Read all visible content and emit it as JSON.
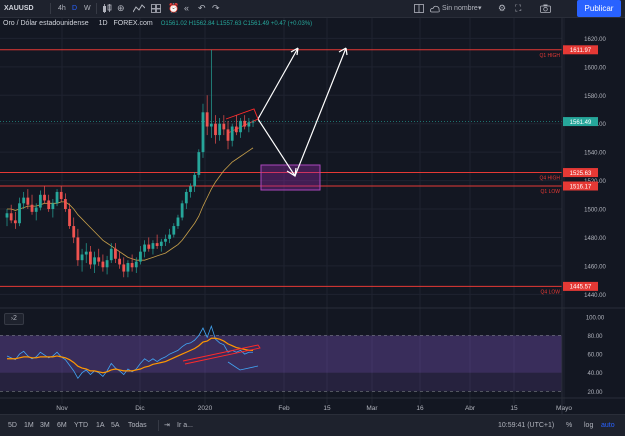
{
  "toolbar": {
    "symbol": "XAUUSD",
    "intervals": [
      "4h",
      "D",
      "W"
    ],
    "template_name": "Sin nombre",
    "publish_label": "Publicar"
  },
  "legend": {
    "title": "Oro / Dólar estadounidense",
    "interval": "1D",
    "exchange": "FOREX.com",
    "ohlc": "O1561.02  H1562.84  L1557.63  C1561.49  +0.47 (+0.03%)"
  },
  "price_axis": {
    "ticks": [
      "1620.00",
      "1600.00",
      "1580.00",
      "1560.00",
      "1540.00",
      "1520.00",
      "1500.00",
      "1480.00",
      "1460.00",
      "1440.00"
    ],
    "badges": [
      {
        "label": "1611.97",
        "color": "#e53935"
      },
      {
        "label": "1561.49",
        "color": "#26a69a"
      },
      {
        "label": "1525.63",
        "color": "#e53935"
      },
      {
        "label": "1516.17",
        "color": "#e53935"
      },
      {
        "label": "1445.57",
        "color": "#e53935"
      }
    ]
  },
  "levels": [
    {
      "label": "Q1 HIGH",
      "value": 1611.97
    },
    {
      "label": "Q4 HIGH",
      "value": 1525.63
    },
    {
      "label": "Q1 LOW",
      "value": 1516.17
    },
    {
      "label": "Q4 LOW",
      "value": 1445.57
    }
  ],
  "rsi_panel": {
    "pane_label": "2",
    "ticks": [
      "100.00",
      "80.00",
      "60.00",
      "40.00",
      "20.00"
    ]
  },
  "time_axis": [
    "Nov",
    "Dic",
    "2020",
    "Feb",
    "15",
    "Mar",
    "16",
    "Abr",
    "15",
    "Mayo"
  ],
  "bottom": {
    "ranges": [
      "5D",
      "1M",
      "3M",
      "6M",
      "YTD",
      "1A",
      "5A",
      "Todas"
    ],
    "goto": "Ir a...",
    "clock": "10:59:41 (UTC+1)",
    "percent": "%",
    "log": "log",
    "auto": "auto"
  },
  "colors": {
    "up": "#26a69a",
    "down": "#ef5350",
    "level_line": "#e53935",
    "ma": "#c8a04a",
    "rsi_orange": "#ff9800",
    "rsi_blue": "#42a5f5",
    "accent": "#2962ff"
  },
  "chart_data": {
    "type": "candlestick",
    "interval": "1D",
    "y_range": [
      1436,
      1628
    ],
    "candles": [
      [
        1494,
        1500,
        1488,
        1497
      ],
      [
        1497,
        1503,
        1490,
        1492
      ],
      [
        1492,
        1498,
        1486,
        1490
      ],
      [
        1490,
        1508,
        1488,
        1504
      ],
      [
        1504,
        1512,
        1500,
        1508
      ],
      [
        1508,
        1514,
        1500,
        1503
      ],
      [
        1503,
        1510,
        1496,
        1498
      ],
      [
        1498,
        1504,
        1492,
        1501
      ],
      [
        1501,
        1513,
        1499,
        1510
      ],
      [
        1510,
        1516,
        1504,
        1506
      ],
      [
        1506,
        1510,
        1498,
        1500
      ],
      [
        1500,
        1507,
        1494,
        1504
      ],
      [
        1504,
        1514,
        1502,
        1512
      ],
      [
        1512,
        1516,
        1505,
        1507
      ],
      [
        1507,
        1511,
        1498,
        1500
      ],
      [
        1500,
        1504,
        1486,
        1488
      ],
      [
        1488,
        1494,
        1476,
        1480
      ],
      [
        1480,
        1486,
        1460,
        1464
      ],
      [
        1464,
        1472,
        1456,
        1468
      ],
      [
        1468,
        1476,
        1462,
        1470
      ],
      [
        1470,
        1474,
        1458,
        1461
      ],
      [
        1461,
        1470,
        1455,
        1466
      ],
      [
        1466,
        1472,
        1460,
        1463
      ],
      [
        1463,
        1468,
        1456,
        1459
      ],
      [
        1459,
        1467,
        1454,
        1464
      ],
      [
        1464,
        1476,
        1462,
        1472
      ],
      [
        1472,
        1476,
        1462,
        1465
      ],
      [
        1465,
        1470,
        1458,
        1461
      ],
      [
        1461,
        1466,
        1452,
        1456
      ],
      [
        1456,
        1464,
        1452,
        1462
      ],
      [
        1462,
        1468,
        1456,
        1459
      ],
      [
        1459,
        1466,
        1455,
        1463
      ],
      [
        1463,
        1474,
        1461,
        1470
      ],
      [
        1470,
        1478,
        1466,
        1475
      ],
      [
        1475,
        1480,
        1470,
        1472
      ],
      [
        1472,
        1478,
        1468,
        1476
      ],
      [
        1476,
        1482,
        1472,
        1474
      ],
      [
        1474,
        1479,
        1470,
        1477
      ],
      [
        1477,
        1482,
        1474,
        1479
      ],
      [
        1479,
        1486,
        1476,
        1482
      ],
      [
        1482,
        1490,
        1480,
        1488
      ],
      [
        1488,
        1496,
        1486,
        1494
      ],
      [
        1494,
        1506,
        1492,
        1504
      ],
      [
        1504,
        1514,
        1500,
        1512
      ],
      [
        1512,
        1518,
        1508,
        1516
      ],
      [
        1516,
        1526,
        1512,
        1524
      ],
      [
        1524,
        1542,
        1522,
        1540
      ],
      [
        1540,
        1574,
        1536,
        1568
      ],
      [
        1568,
        1580,
        1552,
        1558
      ],
      [
        1558,
        1612,
        1550,
        1560
      ],
      [
        1560,
        1566,
        1546,
        1552
      ],
      [
        1552,
        1564,
        1548,
        1560
      ],
      [
        1560,
        1566,
        1552,
        1556
      ],
      [
        1556,
        1562,
        1542,
        1548
      ],
      [
        1548,
        1560,
        1544,
        1558
      ],
      [
        1558,
        1566,
        1552,
        1554
      ],
      [
        1554,
        1564,
        1550,
        1562
      ],
      [
        1562,
        1566,
        1556,
        1558
      ],
      [
        1558,
        1564,
        1554,
        1561
      ],
      [
        1561.02,
        1562.84,
        1557.63,
        1561.49
      ]
    ],
    "moving_average": [
      1500,
      1500,
      1499,
      1500,
      1501,
      1502,
      1502,
      1502,
      1503,
      1504,
      1504,
      1504,
      1504,
      1505,
      1505,
      1503,
      1500,
      1496,
      1493,
      1490,
      1487,
      1484,
      1481,
      1478,
      1476,
      1474,
      1472,
      1470,
      1468,
      1466,
      1465,
      1464,
      1464,
      1464,
      1465,
      1466,
      1467,
      1468,
      1469,
      1471,
      1473,
      1475,
      1478,
      1482,
      1486,
      1490,
      1495,
      1502,
      1508,
      1514,
      1519,
      1523,
      1527,
      1530,
      1533,
      1535,
      1537,
      1539,
      1541,
      1543
    ],
    "rsi": [
      58,
      56,
      54,
      60,
      63,
      58,
      55,
      57,
      62,
      59,
      56,
      58,
      62,
      57,
      54,
      48,
      42,
      34,
      40,
      43,
      38,
      42,
      40,
      36,
      42,
      50,
      45,
      42,
      38,
      44,
      41,
      44,
      50,
      55,
      52,
      55,
      52,
      55,
      57,
      60,
      62,
      64,
      68,
      71,
      72,
      75,
      80,
      88,
      78,
      90,
      76,
      72,
      70,
      62,
      64,
      62,
      64,
      60,
      62,
      62
    ],
    "rsi_signal": [
      55,
      55,
      55,
      56,
      57,
      57,
      56,
      56,
      57,
      57,
      57,
      57,
      58,
      57,
      56,
      54,
      51,
      47,
      45,
      44,
      42,
      42,
      41,
      40,
      41,
      43,
      44,
      43,
      42,
      42,
      42,
      43,
      44,
      46,
      47,
      49,
      50,
      51,
      52,
      54,
      56,
      58,
      60,
      62,
      64,
      66,
      69,
      73,
      74,
      77,
      77,
      76,
      74,
      71,
      69,
      67,
      66,
      65,
      64,
      64
    ]
  }
}
